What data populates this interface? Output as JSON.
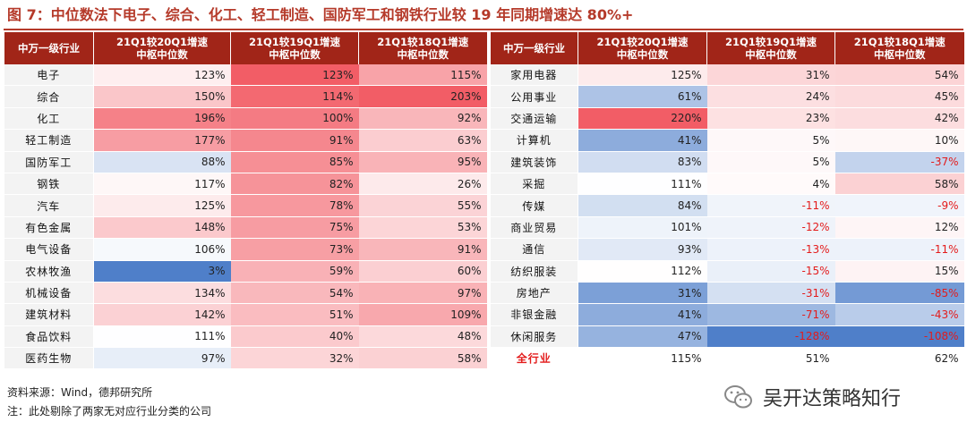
{
  "title": "图 7：中位数法下电子、综合、化工、轻工制造、国防军工和钢铁行业较 19 年同期增速达 80%+",
  "footer": {
    "source": "资料来源：Wind，德邦研究所",
    "note": "注：此处剔除了两家无对应行业分类的公司"
  },
  "watermark": "吴开达策略知行",
  "colors": {
    "header_bg": "#a12518",
    "pos_max": "#f25d66",
    "neg_max": "#4f7fc9",
    "negative_text": "#e31b1b"
  },
  "chart_data": {
    "type": "table",
    "title": "图 7：中位数法下电子、综合、化工、轻工制造、国防军工和钢铁行业较 19 年同期增速达 80%+",
    "columns": [
      "中万一级行业",
      "21Q1较20Q1增速中枢中位数",
      "21Q1较19Q1增速中枢中位数",
      "21Q1较18Q1增速中枢中位数"
    ],
    "column_lines": [
      [
        "中万一级行业"
      ],
      [
        "21Q1较20Q1增速",
        "中枢中位数"
      ],
      [
        "21Q1较19Q1增速",
        "中枢中位数"
      ],
      [
        "21Q1较18Q1增速",
        "中枢中位数"
      ]
    ],
    "left": [
      {
        "industry": "电子",
        "v20": 123,
        "v19": 123,
        "v18": 115
      },
      {
        "industry": "综合",
        "v20": 150,
        "v19": 114,
        "v18": 203
      },
      {
        "industry": "化工",
        "v20": 196,
        "v19": 100,
        "v18": 92
      },
      {
        "industry": "轻工制造",
        "v20": 177,
        "v19": 91,
        "v18": 63
      },
      {
        "industry": "国防军工",
        "v20": 88,
        "v19": 85,
        "v18": 95
      },
      {
        "industry": "钢铁",
        "v20": 117,
        "v19": 82,
        "v18": 26
      },
      {
        "industry": "汽车",
        "v20": 125,
        "v19": 78,
        "v18": 55
      },
      {
        "industry": "有色金属",
        "v20": 148,
        "v19": 75,
        "v18": 53
      },
      {
        "industry": "电气设备",
        "v20": 106,
        "v19": 73,
        "v18": 91
      },
      {
        "industry": "农林牧渔",
        "v20": 3,
        "v19": 59,
        "v18": 60
      },
      {
        "industry": "机械设备",
        "v20": 134,
        "v19": 54,
        "v18": 97
      },
      {
        "industry": "建筑材料",
        "v20": 142,
        "v19": 51,
        "v18": 109
      },
      {
        "industry": "食品饮料",
        "v20": 111,
        "v19": 40,
        "v18": 48
      },
      {
        "industry": "医药生物",
        "v20": 97,
        "v19": 32,
        "v18": 58
      }
    ],
    "right": [
      {
        "industry": "家用电器",
        "v20": 125,
        "v19": 31,
        "v18": 54
      },
      {
        "industry": "公用事业",
        "v20": 61,
        "v19": 24,
        "v18": 45
      },
      {
        "industry": "交通运输",
        "v20": 220,
        "v19": 23,
        "v18": 42
      },
      {
        "industry": "计算机",
        "v20": 41,
        "v19": 5,
        "v18": 10
      },
      {
        "industry": "建筑装饰",
        "v20": 83,
        "v19": 5,
        "v18": -37
      },
      {
        "industry": "采掘",
        "v20": 111,
        "v19": 4,
        "v18": 58
      },
      {
        "industry": "传媒",
        "v20": 84,
        "v19": -11,
        "v18": -9
      },
      {
        "industry": "商业贸易",
        "v20": 101,
        "v19": -12,
        "v18": 12
      },
      {
        "industry": "通信",
        "v20": 93,
        "v19": -13,
        "v18": -11
      },
      {
        "industry": "纺织服装",
        "v20": 112,
        "v19": -15,
        "v18": 15
      },
      {
        "industry": "房地产",
        "v20": 31,
        "v19": -31,
        "v18": -85
      },
      {
        "industry": "非银金融",
        "v20": 41,
        "v19": -71,
        "v18": -43
      },
      {
        "industry": "休闲服务",
        "v20": 47,
        "v19": -128,
        "v18": -108
      },
      {
        "industry": "全行业",
        "v20": 115,
        "v19": 51,
        "v18": 62,
        "total": true
      }
    ],
    "unit": "%"
  }
}
